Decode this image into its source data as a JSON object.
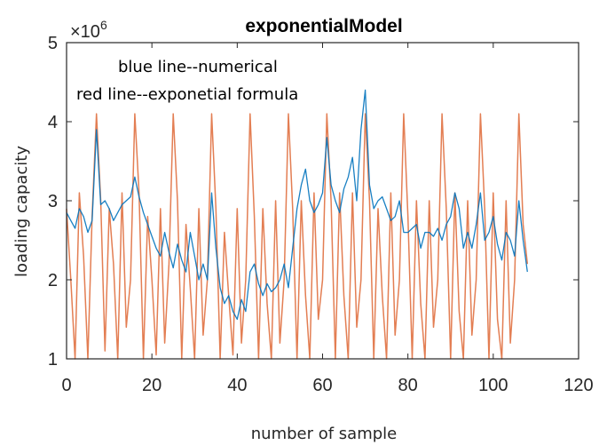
{
  "chart_data": {
    "type": "line",
    "title": "exponentialModel",
    "xlabel": "number of sample",
    "ylabel": "loading capacity",
    "xlim": [
      0,
      120
    ],
    "ylim": [
      1,
      5
    ],
    "y_multiplier_label": "×10",
    "y_multiplier_exponent": "6",
    "x_ticks": [
      0,
      20,
      40,
      60,
      80,
      100,
      120
    ],
    "y_ticks": [
      1,
      2,
      3,
      4,
      5
    ],
    "x_tick_labels": [
      "0",
      "20",
      "40",
      "60",
      "80",
      "100",
      "120"
    ],
    "y_tick_labels": [
      "1",
      "2",
      "3",
      "4",
      "5"
    ],
    "annotations": [
      "blue line--numerical",
      "red line--exponetial formula"
    ],
    "grid": false,
    "series": [
      {
        "color": "#0072BD",
        "x": [
          0,
          1,
          2,
          3,
          4,
          5,
          6,
          7,
          8,
          9,
          10,
          11,
          12,
          13,
          14,
          15,
          16,
          17,
          18,
          19,
          20,
          21,
          22,
          23,
          24,
          25,
          26,
          27,
          28,
          29,
          30,
          31,
          32,
          33,
          34,
          35,
          36,
          37,
          38,
          39,
          40,
          41,
          42,
          43,
          44,
          45,
          46,
          47,
          48,
          49,
          50,
          51,
          52,
          53,
          54,
          55,
          56,
          57,
          58,
          59,
          60,
          61,
          62,
          63,
          64,
          65,
          66,
          67,
          68,
          69,
          70,
          71,
          72,
          73,
          74,
          75,
          76,
          77,
          78,
          79,
          80,
          81,
          82,
          83,
          84,
          85,
          86,
          87,
          88,
          89,
          90,
          91,
          92,
          93,
          94,
          95,
          96,
          97,
          98,
          99,
          100,
          101,
          102,
          103,
          104,
          105,
          106,
          107,
          108
        ],
        "values": [
          2.85,
          2.75,
          2.65,
          2.9,
          2.8,
          2.6,
          2.75,
          3.9,
          2.95,
          3.0,
          2.9,
          2.75,
          2.85,
          2.95,
          3.0,
          3.05,
          3.3,
          3.05,
          2.85,
          2.7,
          2.55,
          2.4,
          2.3,
          2.6,
          2.35,
          2.15,
          2.45,
          2.25,
          2.1,
          2.6,
          2.3,
          2.0,
          2.2,
          2.0,
          3.1,
          2.4,
          1.9,
          1.7,
          1.8,
          1.6,
          1.5,
          1.75,
          1.6,
          2.1,
          2.2,
          1.95,
          1.8,
          1.95,
          1.85,
          1.9,
          2.0,
          2.2,
          1.9,
          2.4,
          2.9,
          3.2,
          3.4,
          3.0,
          2.85,
          2.95,
          3.1,
          3.8,
          3.2,
          3.0,
          2.85,
          3.15,
          3.3,
          3.55,
          3.0,
          3.9,
          4.4,
          3.2,
          2.9,
          3.0,
          3.05,
          2.9,
          2.75,
          2.8,
          3.0,
          2.6,
          2.6,
          2.65,
          2.7,
          2.4,
          2.6,
          2.6,
          2.55,
          2.65,
          2.5,
          2.7,
          2.8,
          3.1,
          2.9,
          2.4,
          2.6,
          2.4,
          2.7,
          3.1,
          2.5,
          2.6,
          2.8,
          2.45,
          2.25,
          2.6,
          2.5,
          2.3,
          3.0,
          2.5,
          2.1
        ]
      },
      {
        "color": "#D95319",
        "x": [
          0,
          1,
          2,
          3,
          4,
          5,
          6,
          7,
          8,
          9,
          10,
          11,
          12,
          13,
          14,
          15,
          16,
          17,
          18,
          19,
          20,
          21,
          22,
          23,
          24,
          25,
          26,
          27,
          28,
          29,
          30,
          31,
          32,
          33,
          34,
          35,
          36,
          37,
          38,
          39,
          40,
          41,
          42,
          43,
          44,
          45,
          46,
          47,
          48,
          49,
          50,
          51,
          52,
          53,
          54,
          55,
          56,
          57,
          58,
          59,
          60,
          61,
          62,
          63,
          64,
          65,
          66,
          67,
          68,
          69,
          70,
          71,
          72,
          73,
          74,
          75,
          76,
          77,
          78,
          79,
          80,
          81,
          82,
          83,
          84,
          85,
          86,
          87,
          88,
          89,
          90,
          91,
          92,
          93,
          94,
          95,
          96,
          97,
          98,
          99,
          100,
          101,
          102,
          103,
          104,
          105,
          106,
          107,
          108
        ],
        "values": [
          2.9,
          2.0,
          1.0,
          3.1,
          2.3,
          1.0,
          2.8,
          4.1,
          3.0,
          1.1,
          2.9,
          2.2,
          1.0,
          3.1,
          1.4,
          2.0,
          4.1,
          3.1,
          1.0,
          2.8,
          2.0,
          1.05,
          2.9,
          1.2,
          2.2,
          4.1,
          3.0,
          1.0,
          2.7,
          1.9,
          1.0,
          2.9,
          1.3,
          2.0,
          4.1,
          2.9,
          1.0,
          2.6,
          1.8,
          1.05,
          2.9,
          1.2,
          2.0,
          4.1,
          2.8,
          1.0,
          2.9,
          1.7,
          1.0,
          3.0,
          1.2,
          2.0,
          4.1,
          2.9,
          1.0,
          3.0,
          1.8,
          1.0,
          3.1,
          1.5,
          2.0,
          4.1,
          3.0,
          1.0,
          3.1,
          1.8,
          1.0,
          3.1,
          1.4,
          2.0,
          4.1,
          3.0,
          1.0,
          2.9,
          1.8,
          1.0,
          3.1,
          1.3,
          2.0,
          4.1,
          2.8,
          1.0,
          3.0,
          1.7,
          1.0,
          3.0,
          1.4,
          2.0,
          4.1,
          2.9,
          1.0,
          3.1,
          1.6,
          1.0,
          3.0,
          1.3,
          2.0,
          4.1,
          2.9,
          1.0,
          3.1,
          1.5,
          1.0,
          3.0,
          1.2,
          2.0,
          4.1,
          2.7,
          2.2
        ]
      }
    ]
  }
}
